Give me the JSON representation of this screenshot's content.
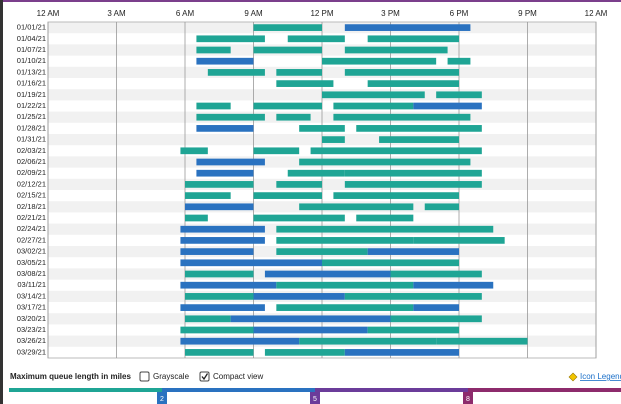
{
  "chart_data": {
    "type": "timeline",
    "xlim": [
      0,
      24
    ],
    "xticks": [
      {
        "value": 0,
        "label": "12 AM"
      },
      {
        "value": 3,
        "label": "3 AM"
      },
      {
        "value": 6,
        "label": "6 AM"
      },
      {
        "value": 9,
        "label": "9 AM"
      },
      {
        "value": 12,
        "label": "12 PM"
      },
      {
        "value": 15,
        "label": "3 PM"
      },
      {
        "value": 18,
        "label": "6 PM"
      },
      {
        "value": 21,
        "label": "9 PM"
      },
      {
        "value": 24,
        "label": "12 AM"
      }
    ],
    "grid": true,
    "categories": [
      "01/01/21",
      "01/04/21",
      "01/07/21",
      "01/10/21",
      "01/13/21",
      "01/16/21",
      "01/19/21",
      "01/22/21",
      "01/25/21",
      "01/28/21",
      "01/31/21",
      "02/03/21",
      "02/06/21",
      "02/09/21",
      "02/12/21",
      "02/15/21",
      "02/18/21",
      "02/21/21",
      "02/24/21",
      "02/27/21",
      "03/02/21",
      "03/05/21",
      "03/08/21",
      "03/11/21",
      "03/14/21",
      "03/17/21",
      "03/20/21",
      "03/23/21",
      "03/26/21",
      "03/29/21"
    ],
    "segments": [
      [
        [
          9,
          12,
          1
        ],
        [
          13,
          18.5,
          3
        ]
      ],
      [
        [
          6.5,
          9.5,
          1
        ],
        [
          10.5,
          13,
          1
        ],
        [
          14,
          18,
          1
        ]
      ],
      [
        [
          6.5,
          8,
          1
        ],
        [
          9,
          12,
          1
        ],
        [
          13,
          17.5,
          1
        ]
      ],
      [
        [
          6.5,
          9,
          3
        ],
        [
          12,
          17,
          1
        ],
        [
          17.5,
          18.5,
          1
        ]
      ],
      [
        [
          7,
          9.5,
          1
        ],
        [
          10,
          12,
          1
        ],
        [
          13,
          18,
          1
        ]
      ],
      [
        [
          10,
          12.5,
          1
        ],
        [
          14,
          18,
          1
        ]
      ],
      [
        [
          12,
          16.5,
          1
        ],
        [
          17,
          19,
          1
        ]
      ],
      [
        [
          6.5,
          8,
          1
        ],
        [
          9,
          12,
          1
        ],
        [
          12.5,
          16,
          1
        ],
        [
          16,
          19,
          3
        ]
      ],
      [
        [
          6.5,
          9.5,
          1
        ],
        [
          10,
          11.5,
          1
        ],
        [
          12.5,
          18.5,
          1
        ]
      ],
      [
        [
          6.5,
          9,
          3
        ],
        [
          11,
          13,
          1
        ],
        [
          13.5,
          19,
          1
        ]
      ],
      [
        [
          12,
          13,
          1
        ],
        [
          14.5,
          18,
          1
        ]
      ],
      [
        [
          5.8,
          7,
          1
        ],
        [
          9,
          11,
          1
        ],
        [
          11.5,
          19,
          1
        ]
      ],
      [
        [
          6.5,
          9.5,
          3
        ],
        [
          11,
          15,
          1
        ],
        [
          15,
          18.5,
          1
        ]
      ],
      [
        [
          6.5,
          9,
          3
        ],
        [
          10.5,
          13,
          1
        ],
        [
          13,
          19,
          1
        ]
      ],
      [
        [
          6,
          9,
          1
        ],
        [
          10,
          12,
          1
        ],
        [
          13,
          19,
          1
        ]
      ],
      [
        [
          6,
          8,
          1
        ],
        [
          9,
          12,
          1
        ],
        [
          12.5,
          18,
          1
        ]
      ],
      [
        [
          6,
          9,
          3
        ],
        [
          11,
          16,
          1
        ],
        [
          16.5,
          18,
          1
        ]
      ],
      [
        [
          6,
          7,
          1
        ],
        [
          9,
          13,
          1
        ],
        [
          13.5,
          16,
          1
        ]
      ],
      [
        [
          5.8,
          9.5,
          3
        ],
        [
          10,
          15,
          1
        ],
        [
          15,
          19.5,
          1
        ]
      ],
      [
        [
          5.8,
          9.5,
          3
        ],
        [
          10,
          16,
          1
        ],
        [
          16,
          20,
          1
        ]
      ],
      [
        [
          5.8,
          9,
          3
        ],
        [
          10,
          14,
          1
        ],
        [
          14,
          18,
          3
        ]
      ],
      [
        [
          5.8,
          12,
          3
        ],
        [
          12,
          18,
          1
        ]
      ],
      [
        [
          6,
          9,
          1
        ],
        [
          9.5,
          15,
          3
        ],
        [
          15,
          19,
          1
        ]
      ],
      [
        [
          5.8,
          10,
          3
        ],
        [
          10,
          16,
          1
        ],
        [
          16,
          19.5,
          3
        ]
      ],
      [
        [
          6,
          9,
          1
        ],
        [
          9,
          13,
          3
        ],
        [
          13,
          19,
          1
        ]
      ],
      [
        [
          5.8,
          9.5,
          3
        ],
        [
          10,
          16,
          1
        ],
        [
          16,
          18,
          3
        ]
      ],
      [
        [
          6,
          8,
          1
        ],
        [
          8,
          15,
          3
        ],
        [
          15,
          19,
          1
        ]
      ],
      [
        [
          5.8,
          9,
          1
        ],
        [
          9,
          14,
          3
        ],
        [
          14,
          18,
          1
        ]
      ],
      [
        [
          5.8,
          11,
          3
        ],
        [
          11,
          17,
          1
        ],
        [
          17,
          21,
          1
        ]
      ],
      [
        [
          6,
          9,
          1
        ],
        [
          9.5,
          13,
          1
        ],
        [
          13,
          18,
          3
        ]
      ]
    ],
    "legend": {
      "title": "Maximum queue length in miles",
      "grayscale": "Grayscale",
      "compact_view": "Compact view",
      "icon_legend": "Icon Legend"
    },
    "scale": {
      "xlim": [
        -1,
        11
      ],
      "ticks": [
        2,
        5,
        8
      ],
      "colors": [
        "#1fa595",
        "#2a72c0",
        "#6b3c9a",
        "#8d2b6c"
      ]
    }
  }
}
